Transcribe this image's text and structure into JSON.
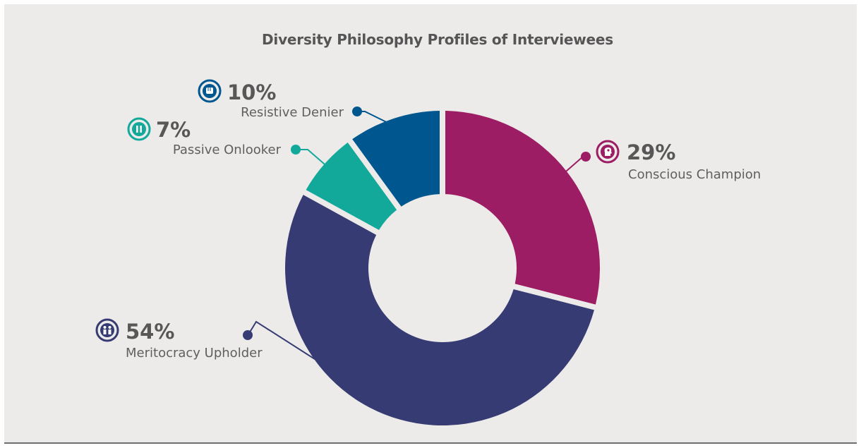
{
  "chart_data": {
    "type": "pie",
    "title": "Diversity Philosophy Profiles of Interviewees",
    "donut": true,
    "slices": [
      {
        "label": "Conscious Champion",
        "value": 29,
        "percent_label": "29%",
        "color": "#9c1d63",
        "icon": "head-bulb-icon"
      },
      {
        "label": "Meritocracy Upholder",
        "value": 54,
        "percent_label": "54%",
        "color": "#363c73",
        "icon": "people-icon"
      },
      {
        "label": "Passive Onlooker",
        "value": 7,
        "percent_label": "7%",
        "color": "#12a99a",
        "icon": "pause-icon"
      },
      {
        "label": "Resistive Denier",
        "value": 10,
        "percent_label": "10%",
        "color": "#00578f",
        "icon": "fist-icon"
      }
    ]
  },
  "colors": {
    "background": "#edebea",
    "text_dark": "#575757",
    "label_text": "#5f5f5f"
  }
}
